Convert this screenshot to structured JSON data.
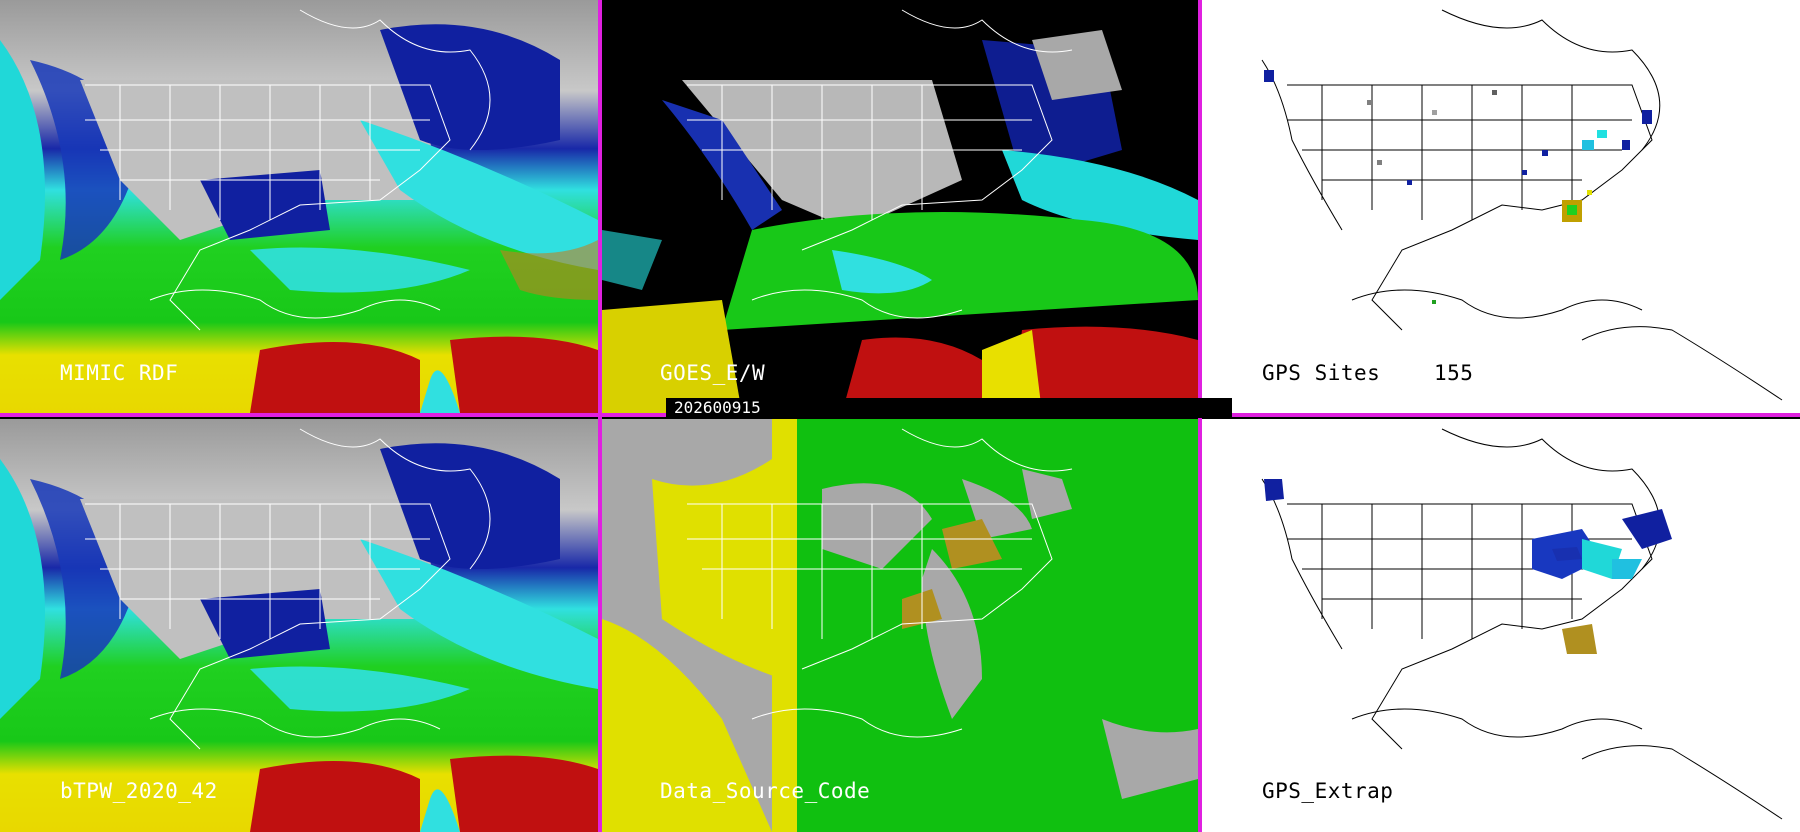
{
  "panels": {
    "top_left": {
      "label": "MIMIC RDF"
    },
    "top_middle": {
      "label": "GOES_E/W"
    },
    "top_right": {
      "label": "GPS Sites",
      "count": "155"
    },
    "bottom_left": {
      "label": "bTPW_2020_42"
    },
    "bottom_middle": {
      "label": "Data_Source_Code"
    },
    "bottom_right": {
      "label": "GPS_Extrap"
    }
  },
  "date_bar": "202600915",
  "colors": {
    "divider": "#e020e0",
    "tpw_gray": "#b8b8b8",
    "tpw_dark_blue": "#1020a0",
    "tpw_cyan": "#20e0e0",
    "tpw_green": "#20d020",
    "tpw_yellow": "#e8e000",
    "tpw_red": "#c01010",
    "source_gray": "#a8a8a8",
    "source_yellow": "#e0e000",
    "source_green": "#10c010",
    "map_white_bg": "#ffffff"
  }
}
